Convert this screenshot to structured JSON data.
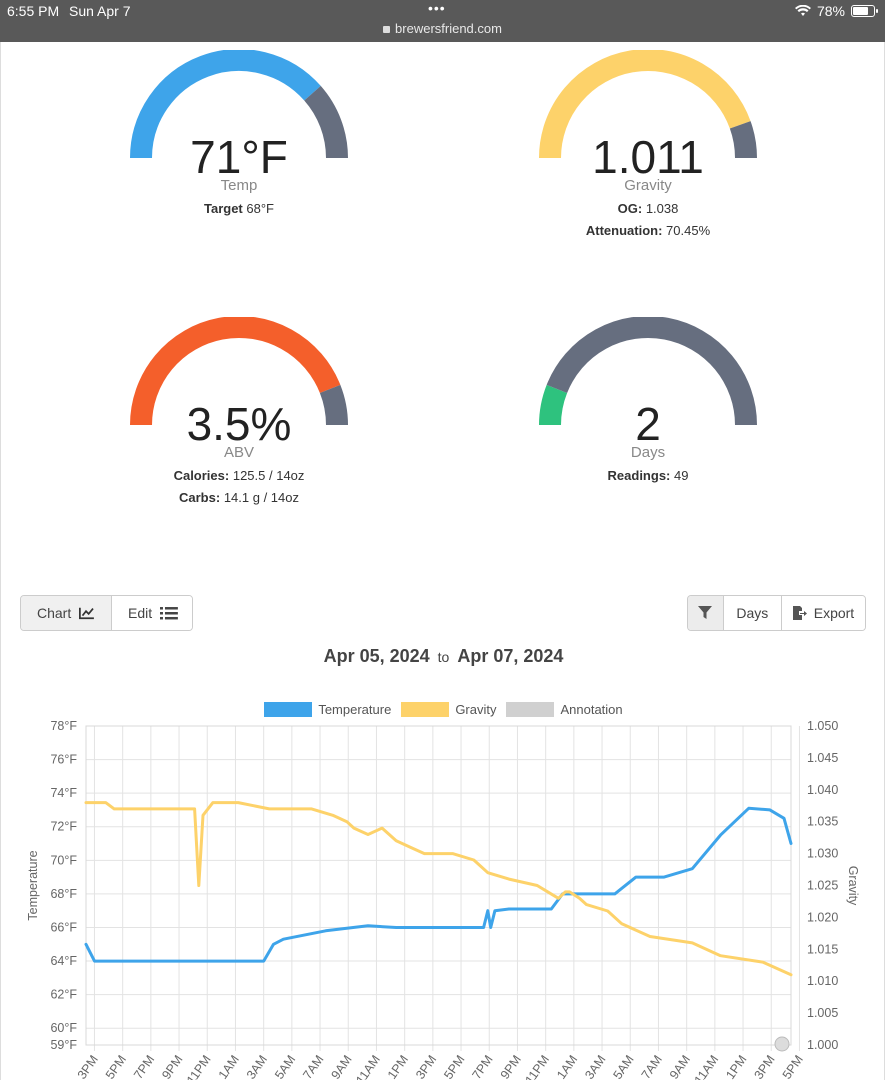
{
  "statusbar": {
    "time": "6:55 PM",
    "date": "Sun Apr 7",
    "url": "brewersfriend.com",
    "battery": "78%"
  },
  "gauges": {
    "temp": {
      "value": "71°F",
      "label": "Temp",
      "sub1_label": "Target",
      "sub1_value": "68°F",
      "fill_fraction": 0.77,
      "color": "#3ea4ea"
    },
    "gravity": {
      "value": "1.011",
      "label": "Gravity",
      "sub1_label": "OG:",
      "sub1_value": "1.038",
      "sub2_label": "Attenuation:",
      "sub2_value": "70.45%",
      "fill_fraction": 0.89,
      "color": "#fdd26a"
    },
    "abv": {
      "value": "3.5%",
      "label": "ABV",
      "sub1_label": "Calories:",
      "sub1_value": "125.5 / 14oz",
      "sub2_label": "Carbs:",
      "sub2_value": "14.1 g / 14oz",
      "fill_fraction": 0.88,
      "color": "#f45f2b"
    },
    "days": {
      "value": "2",
      "label": "Days",
      "sub1_label": "Readings:",
      "sub1_value": "49",
      "fill_fraction": 0.12,
      "color": "#2ec27e"
    },
    "track_color": "#666e7f"
  },
  "toolbar": {
    "chart_label": "Chart",
    "edit_label": "Edit",
    "days_label": "Days",
    "export_label": "Export"
  },
  "range": {
    "from": "Apr 05, 2024",
    "to_word": "to",
    "to": "Apr 07, 2024"
  },
  "chart_data": {
    "type": "line",
    "legend": [
      {
        "name": "Temperature",
        "color": "#3ea4ea"
      },
      {
        "name": "Gravity",
        "color": "#fdd26a"
      },
      {
        "name": "Annotation",
        "color": "#d0d0d0"
      }
    ],
    "ylabel_left": "Temperature",
    "ylabel_right": "Gravity",
    "y_left_range": [
      59,
      78
    ],
    "y_left_ticks": [
      "78°F",
      "76°F",
      "74°F",
      "72°F",
      "70°F",
      "68°F",
      "66°F",
      "64°F",
      "62°F",
      "60°F",
      "59°F"
    ],
    "y_left_tick_values": [
      78,
      76,
      74,
      72,
      70,
      68,
      66,
      64,
      62,
      60,
      59
    ],
    "y_right_range": [
      1.0,
      1.05
    ],
    "y_right_ticks": [
      "1.050",
      "1.045",
      "1.040",
      "1.035",
      "1.030",
      "1.025",
      "1.020",
      "1.015",
      "1.010",
      "1.005",
      "1.000"
    ],
    "x_range_hours": [
      0,
      50
    ],
    "x_ticks": [
      "3PM",
      "5PM",
      "7PM",
      "9PM",
      "11PM",
      "1AM",
      "3AM",
      "5AM",
      "7AM",
      "9AM",
      "11AM",
      "1PM",
      "3PM",
      "5PM",
      "7PM",
      "9PM",
      "11PM",
      "1AM",
      "3AM",
      "5AM",
      "7AM",
      "9AM",
      "11AM",
      "1PM",
      "3PM",
      "5PM"
    ],
    "grid": true,
    "series": [
      {
        "name": "Temperature",
        "x": [
          0,
          0.6,
          2,
          6,
          10,
          12.6,
          13.3,
          14,
          17,
          20,
          22,
          26,
          28.2,
          28.5,
          28.7,
          29,
          30,
          33,
          33.8,
          35,
          37.5,
          39,
          41,
          43,
          45,
          47,
          48.5,
          49.5,
          50
        ],
        "values": [
          65,
          64,
          64,
          64,
          64,
          64,
          65,
          65.3,
          65.8,
          66.1,
          66,
          66,
          66,
          67,
          66,
          67,
          67.1,
          67.1,
          68,
          68,
          68,
          69,
          69,
          69.5,
          71.5,
          73.1,
          73,
          72.5,
          71
        ],
        "color": "#3ea4ea"
      },
      {
        "name": "Gravity",
        "x": [
          0,
          1.4,
          2,
          5,
          7,
          7.7,
          8,
          8.3,
          9,
          10.8,
          13,
          16,
          17.5,
          18.5,
          19,
          20,
          21,
          22,
          23,
          24,
          25,
          26,
          27.5,
          28.5,
          30,
          32,
          33.5,
          34,
          34.3,
          35,
          35.5,
          37,
          38,
          40,
          43,
          45,
          48,
          50
        ],
        "values": [
          1.038,
          1.038,
          1.037,
          1.037,
          1.037,
          1.037,
          1.025,
          1.036,
          1.038,
          1.038,
          1.037,
          1.037,
          1.036,
          1.035,
          1.034,
          1.033,
          1.034,
          1.032,
          1.031,
          1.03,
          1.03,
          1.03,
          1.029,
          1.027,
          1.026,
          1.025,
          1.023,
          1.024,
          1.024,
          1.023,
          1.022,
          1.021,
          1.019,
          1.017,
          1.016,
          1.014,
          1.013,
          1.011
        ],
        "color": "#fdd26a"
      }
    ]
  }
}
